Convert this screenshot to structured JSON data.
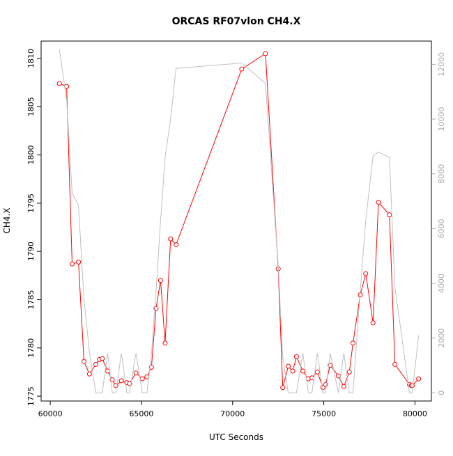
{
  "chart_data": {
    "type": "line",
    "title": "ORCAS RF07vlon CH4.X",
    "xlabel": "UTC Seconds",
    "ylabel": "CH4.X",
    "xlim": [
      59500,
      80900
    ],
    "ylim": [
      1774.5,
      1811.8
    ],
    "x_ticks": [
      60000,
      65000,
      70000,
      75000,
      80000
    ],
    "y_ticks": [
      1775,
      1780,
      1785,
      1790,
      1795,
      1800,
      1805,
      1810
    ],
    "y2_lim": [
      -300,
      12850
    ],
    "y2_ticks": [
      0,
      2000,
      4000,
      6000,
      8000,
      10000,
      12000
    ],
    "grid": false,
    "colors": {
      "primary": "#ff0000",
      "secondary": "#c0c0c0",
      "axis": "#000000",
      "right_axis": "#aaaaaa"
    },
    "series": [
      {
        "axis": "left",
        "color": "#ff0000",
        "style": "line+points",
        "x": [
          60500,
          60900,
          61200,
          61550,
          61850,
          62150,
          62500,
          62700,
          62850,
          63150,
          63400,
          63600,
          63900,
          64200,
          64350,
          64700,
          65050,
          65300,
          65550,
          65800,
          66050,
          66300,
          66600,
          66900,
          70500,
          71800,
          72500,
          72750,
          73050,
          73300,
          73500,
          73850,
          74150,
          74350,
          74650,
          74950,
          75100,
          75350,
          75800,
          76100,
          76400,
          76600,
          77000,
          77300,
          77700,
          78000,
          78600,
          78900,
          79700,
          79800,
          79850,
          80200
        ],
        "values": [
          1807.4,
          1807.1,
          1788.7,
          1788.9,
          1778.6,
          1777.3,
          1778.3,
          1778.8,
          1778.9,
          1777.6,
          1776.7,
          1776.1,
          1776.6,
          1776.4,
          1776.3,
          1777.4,
          1776.8,
          1777.0,
          1778.0,
          1784.1,
          1787.0,
          1780.5,
          1791.3,
          1790.7,
          1808.9,
          1810.5,
          1788.2,
          1775.9,
          1778.1,
          1777.6,
          1779.1,
          1777.6,
          1776.8,
          1776.9,
          1777.5,
          1775.9,
          1776.2,
          1778.2,
          1777.1,
          1776.0,
          1777.5,
          1780.5,
          1785.5,
          1787.7,
          1782.6,
          1795.1,
          1793.8,
          1778.3,
          1776.2,
          1776.1,
          1776.1,
          1776.8
        ]
      },
      {
        "axis": "right",
        "color": "#c0c0c0",
        "style": "line",
        "x": [
          60500,
          60900,
          61200,
          61550,
          61850,
          62150,
          62500,
          62700,
          62850,
          63150,
          63400,
          63600,
          63900,
          64200,
          64350,
          64700,
          65050,
          65300,
          65550,
          65800,
          66050,
          66300,
          66600,
          66900,
          70500,
          71800,
          72500,
          72750,
          73050,
          73300,
          73500,
          73850,
          74150,
          74350,
          74650,
          74950,
          75100,
          75350,
          75800,
          76100,
          76400,
          76600,
          77000,
          77300,
          77700,
          78000,
          78600,
          78900,
          79700,
          79800,
          79850,
          80200
        ],
        "values": [
          12550,
          10700,
          7300,
          6850,
          3400,
          1500,
          0,
          0,
          0,
          1450,
          0,
          0,
          1450,
          0,
          0,
          1450,
          0,
          0,
          1400,
          3700,
          6300,
          8600,
          10000,
          11850,
          12050,
          11300,
          4650,
          1300,
          0,
          0,
          0,
          1450,
          0,
          0,
          1450,
          0,
          0,
          1450,
          0,
          1450,
          0,
          0,
          3700,
          6300,
          8650,
          8800,
          8600,
          3850,
          0,
          0,
          0,
          2100
        ]
      }
    ]
  }
}
